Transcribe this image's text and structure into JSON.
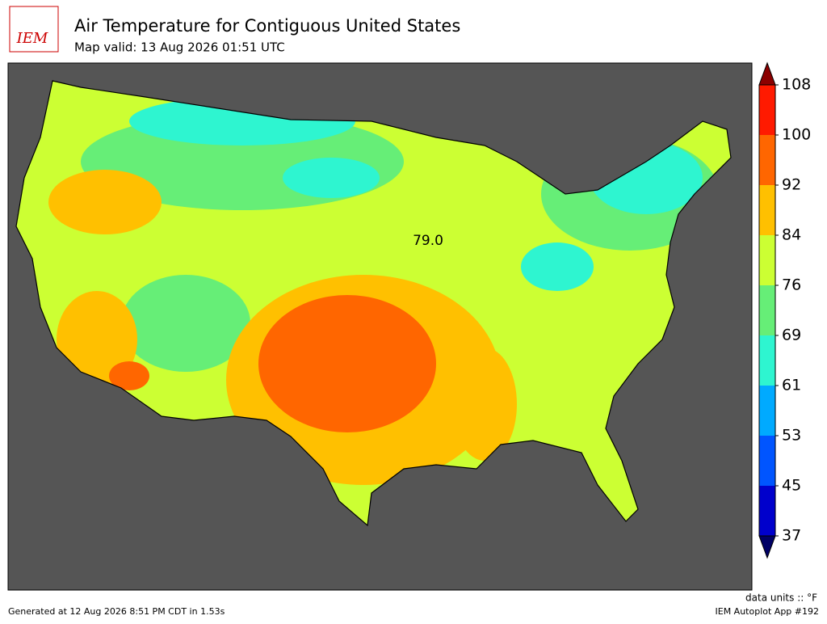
{
  "header": {
    "logo": "IEM",
    "title": "Air Temperature for Contiguous United States",
    "subtitle": "Map valid: 13 Aug 2026 01:51 UTC"
  },
  "map": {
    "annotation": "79.0"
  },
  "colorbar": {
    "levels": [
      37,
      45,
      53,
      61,
      69,
      76,
      84,
      92,
      100,
      108
    ],
    "colors": [
      "#0000cc",
      "#0055ff",
      "#00aaff",
      "#2ef5d0",
      "#66ee77",
      "#ccff33",
      "#ffc000",
      "#ff6600",
      "#ff1a00"
    ],
    "under_color": "#000066",
    "over_color": "#8b0000"
  },
  "footer": {
    "units": "data units :: °F",
    "generated": "Generated at 12 Aug 2026 8:51 PM CDT in 1.53s",
    "app": "IEM Autoplot App #192"
  }
}
